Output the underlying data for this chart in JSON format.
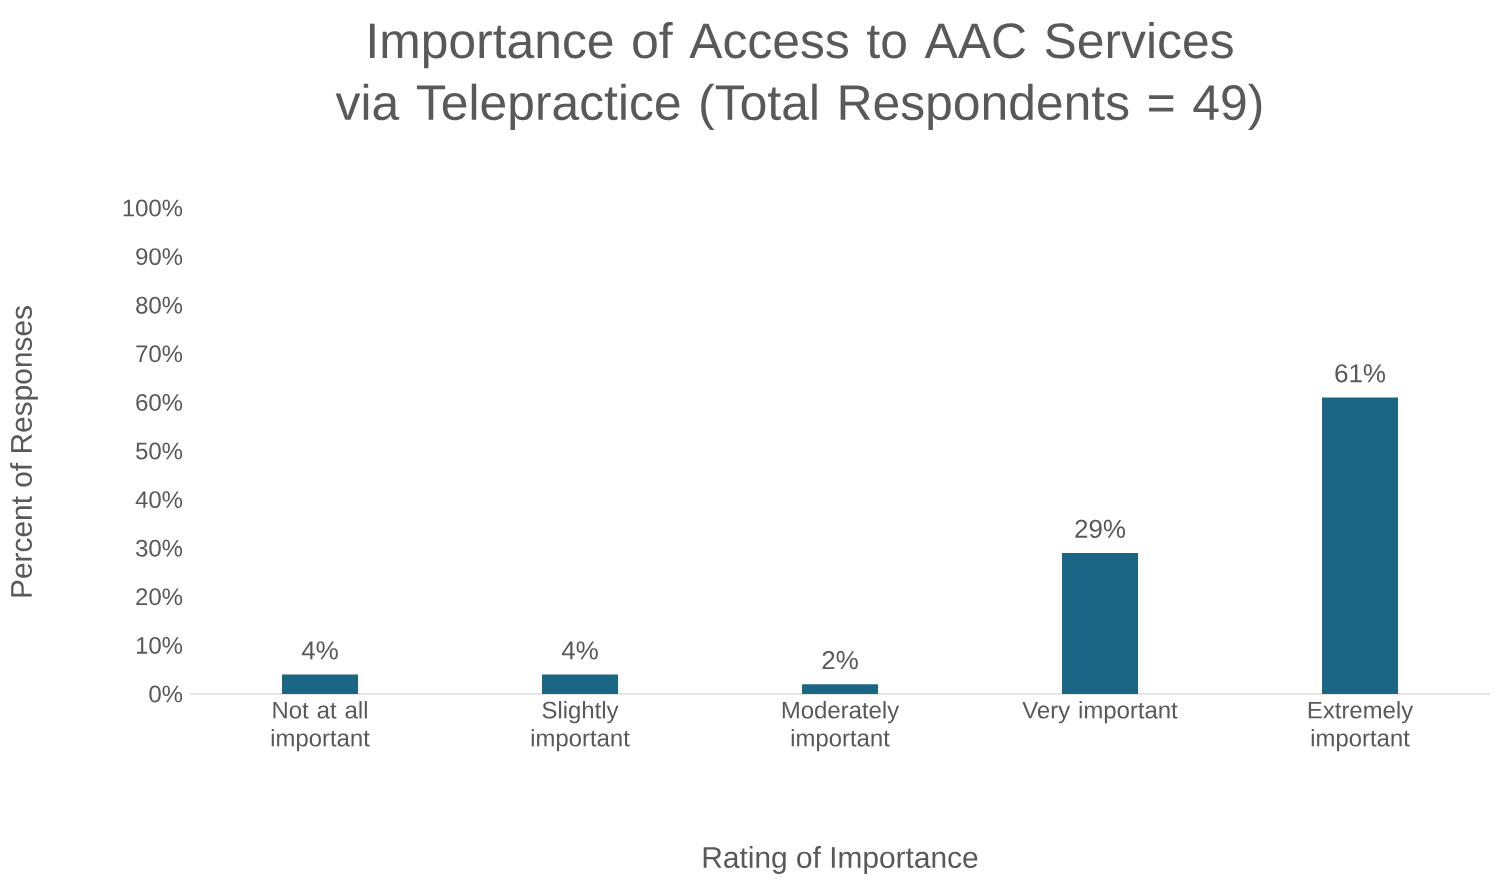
{
  "chart_data": {
    "type": "bar",
    "title": "Importance of Access to AAC Services via Telepractice (Total Respondents = 49)",
    "xlabel": "Rating of Importance",
    "ylabel": "Percent of Responses",
    "categories": [
      "Not at all important",
      "Slightly important",
      "Moderately important",
      "Very important",
      "Extremely important"
    ],
    "values": [
      4,
      4,
      2,
      29,
      61
    ],
    "value_labels": [
      "4%",
      "4%",
      "2%",
      "29%",
      "61%"
    ],
    "color": "#1b6685",
    "ylim": [
      0,
      100
    ],
    "yticks": [
      {
        "value": 0,
        "label": "0%"
      },
      {
        "value": 10,
        "label": "10%"
      },
      {
        "value": 20,
        "label": "20%"
      },
      {
        "value": 30,
        "label": "30%"
      },
      {
        "value": 40,
        "label": "40%"
      },
      {
        "value": 50,
        "label": "50%"
      },
      {
        "value": 60,
        "label": "60%"
      },
      {
        "value": 70,
        "label": "70%"
      },
      {
        "value": 80,
        "label": "80%"
      },
      {
        "value": 90,
        "label": "90%"
      },
      {
        "value": 100,
        "label": "100%"
      }
    ],
    "data_labels": false
  }
}
